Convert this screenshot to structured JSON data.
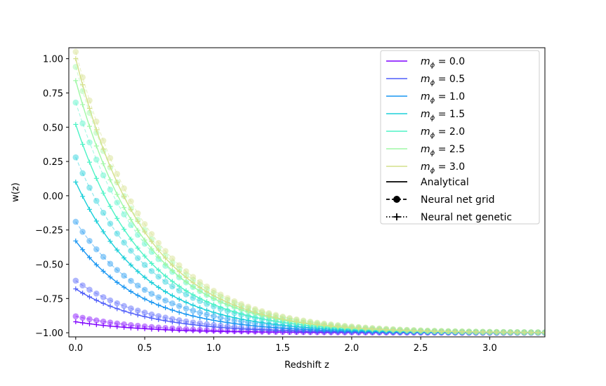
{
  "chart_data": {
    "type": "line",
    "xlabel": "Redshift z",
    "ylabel": "w(z)",
    "xlim": [
      -0.05,
      3.4
    ],
    "ylim": [
      -1.03,
      1.08
    ],
    "xticks": [
      "0.0",
      "0.5",
      "1.0",
      "1.5",
      "2.0",
      "2.5",
      "3.0"
    ],
    "xtick_values": [
      0.0,
      0.5,
      1.0,
      1.5,
      2.0,
      2.5,
      3.0
    ],
    "yticks": [
      "−1.00",
      "−0.75",
      "−0.50",
      "−0.25",
      "0.00",
      "0.25",
      "0.50",
      "0.75",
      "1.00"
    ],
    "ytick_values": [
      -1.0,
      -0.75,
      -0.5,
      -0.25,
      0.0,
      0.25,
      0.5,
      0.75,
      1.0
    ],
    "legend_position": "top-right",
    "series": [
      {
        "name_prefix": "m",
        "name_sub": "ϕ",
        "name_value": " = 0.0",
        "color": "#7f00ff",
        "w0": -0.92,
        "w0_grid": -0.88,
        "k": 2.0
      },
      {
        "name_prefix": "m",
        "name_sub": "ϕ",
        "name_value": " = 0.5",
        "color": "#4e5dfa",
        "w0": -0.68,
        "w0_grid": -0.62,
        "k": 2.0
      },
      {
        "name_prefix": "m",
        "name_sub": "ϕ",
        "name_value": " = 1.0",
        "color": "#1996f2",
        "w0": -0.33,
        "w0_grid": -0.19,
        "k": 2.0
      },
      {
        "name_prefix": "m",
        "name_sub": "ϕ",
        "name_value": " = 1.5",
        "color": "#1bcfd9",
        "w0": 0.1,
        "w0_grid": 0.28,
        "k": 2.0
      },
      {
        "name_prefix": "m",
        "name_sub": "ϕ",
        "name_value": " = 2.0",
        "color": "#4ef3c6",
        "w0": 0.52,
        "w0_grid": 0.68,
        "k": 2.0
      },
      {
        "name_prefix": "m",
        "name_sub": "ϕ",
        "name_value": " = 2.5",
        "color": "#9ff8a5",
        "w0": 0.84,
        "w0_grid": 0.94,
        "k": 2.0
      },
      {
        "name_prefix": "m",
        "name_sub": "ϕ",
        "name_value": " = 3.0",
        "color": "#d4e08a",
        "w0": 1.0,
        "w0_grid": 1.05,
        "k": 2.0
      }
    ],
    "style_legend": [
      {
        "label": "Analytical",
        "style": "solid"
      },
      {
        "label": "Neural net grid",
        "style": "dashed-dot"
      },
      {
        "label": "Neural net genetic",
        "style": "dotted-plus"
      }
    ]
  }
}
